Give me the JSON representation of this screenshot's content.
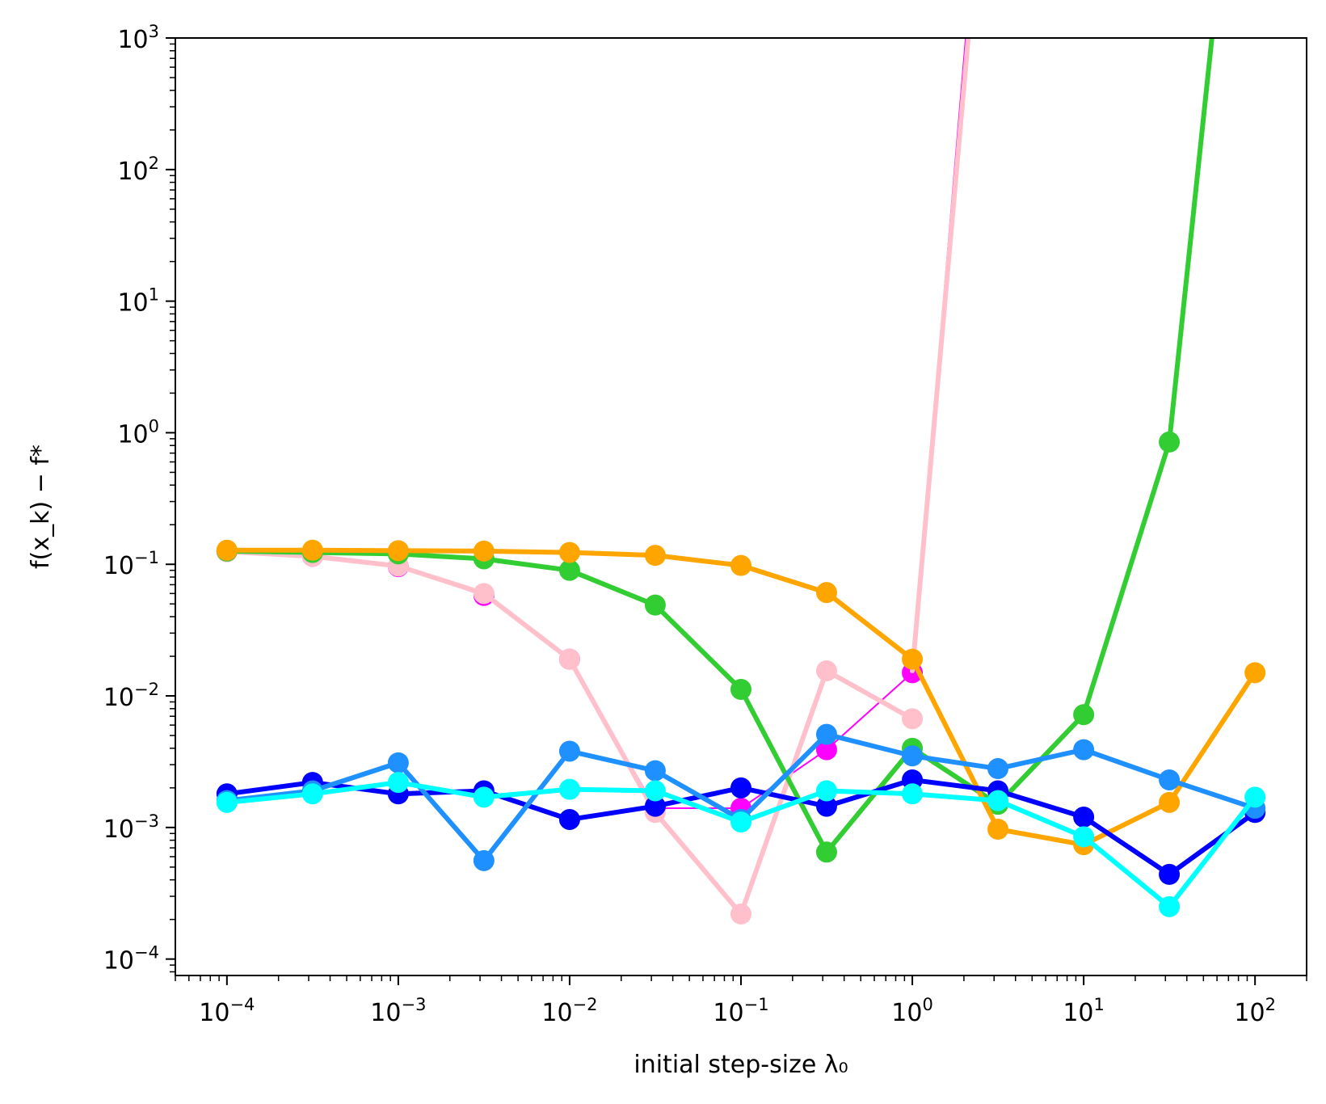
{
  "chart_data": {
    "type": "line",
    "xlabel": "initial step-size λ₀",
    "ylabel": "f(x_k) − f*",
    "xscale": "log",
    "yscale": "log",
    "xlim": [
      5e-05,
      200
    ],
    "ylim": [
      7.5e-05,
      1000
    ],
    "x_ticks": [
      {
        "value": 0.0001,
        "base": "10",
        "exp": "−4"
      },
      {
        "value": 0.001,
        "base": "10",
        "exp": "−3"
      },
      {
        "value": 0.01,
        "base": "10",
        "exp": "−2"
      },
      {
        "value": 0.1,
        "base": "10",
        "exp": "−1"
      },
      {
        "value": 1,
        "base": "10",
        "exp": "0"
      },
      {
        "value": 10,
        "base": "10",
        "exp": "1"
      },
      {
        "value": 100,
        "base": "10",
        "exp": "2"
      }
    ],
    "y_ticks": [
      {
        "value": 0.0001,
        "base": "10",
        "exp": "−4"
      },
      {
        "value": 0.001,
        "base": "10",
        "exp": "−3"
      },
      {
        "value": 0.01,
        "base": "10",
        "exp": "−2"
      },
      {
        "value": 0.1,
        "base": "10",
        "exp": "−1"
      },
      {
        "value": 1,
        "base": "10",
        "exp": "0"
      },
      {
        "value": 10,
        "base": "10",
        "exp": "1"
      },
      {
        "value": 100,
        "base": "10",
        "exp": "2"
      },
      {
        "value": 1000,
        "base": "10",
        "exp": "3"
      }
    ],
    "grid": false,
    "legend": "none",
    "series": [
      {
        "color": "#ff00ff",
        "line_width": 2,
        "markers": true,
        "x": [
          0.0001,
          0.000316,
          0.001,
          0.00316,
          0.01,
          0.0316,
          0.1,
          0.316,
          1,
          2.05
        ],
        "y": [
          0.125,
          0.115,
          0.096,
          0.058,
          0.019,
          0.0014,
          0.0014,
          0.0039,
          0.015,
          1000
        ]
      },
      {
        "color": "#ffc0cb",
        "line_width": 6,
        "markers": true,
        "x": [
          0.0001,
          0.000316,
          0.001,
          0.00316,
          0.01,
          0.0316,
          0.1,
          0.316,
          1
        ],
        "y": [
          0.125,
          0.115,
          0.097,
          0.06,
          0.019,
          0.0013,
          0.00022,
          0.0155,
          0.0067
        ]
      },
      {
        "color": "#ffc0cb",
        "line_width": 6,
        "markers": false,
        "x": [
          1,
          2.12
        ],
        "y": [
          0.0155,
          1000
        ]
      },
      {
        "color": "#32cd32",
        "line_width": 6,
        "markers": true,
        "x": [
          0.0001,
          0.000316,
          0.001,
          0.00316,
          0.01,
          0.0316,
          0.1,
          0.316,
          1,
          3.16,
          10,
          31.6,
          56
        ],
        "y": [
          0.126,
          0.123,
          0.12,
          0.11,
          0.09,
          0.049,
          0.0112,
          0.00065,
          0.004,
          0.0015,
          0.0072,
          0.85,
          1000
        ]
      },
      {
        "color": "#ffa500",
        "line_width": 6,
        "markers": true,
        "x": [
          0.0001,
          0.000316,
          0.001,
          0.00316,
          0.01,
          0.0316,
          0.1,
          0.316,
          1,
          3.16,
          10,
          31.6,
          100
        ],
        "y": [
          0.128,
          0.128,
          0.127,
          0.126,
          0.123,
          0.117,
          0.098,
          0.061,
          0.019,
          0.00097,
          0.00074,
          0.00155,
          0.015
        ]
      },
      {
        "color": "#0000ff",
        "line_width": 6,
        "markers": true,
        "x": [
          0.0001,
          0.000316,
          0.001,
          0.00316,
          0.01,
          0.0316,
          0.1,
          0.316,
          1,
          3.16,
          10,
          31.6,
          100
        ],
        "y": [
          0.0018,
          0.0022,
          0.0018,
          0.0019,
          0.00115,
          0.00145,
          0.002,
          0.00145,
          0.0023,
          0.0019,
          0.0012,
          0.00044,
          0.0013
        ]
      },
      {
        "color": "#1e90ff",
        "line_width": 6,
        "markers": true,
        "x": [
          0.0001,
          0.000316,
          0.001,
          0.00316,
          0.01,
          0.0316,
          0.1,
          0.316,
          1,
          3.16,
          10,
          31.6,
          100
        ],
        "y": [
          0.0016,
          0.0019,
          0.0031,
          0.00056,
          0.0038,
          0.0027,
          0.00115,
          0.0051,
          0.0035,
          0.0028,
          0.0039,
          0.0023,
          0.0014
        ]
      },
      {
        "color": "#00ffff",
        "line_width": 6,
        "markers": true,
        "x": [
          0.0001,
          0.000316,
          0.001,
          0.00316,
          0.01,
          0.0316,
          0.1,
          0.316,
          1,
          3.16,
          10,
          31.6,
          100
        ],
        "y": [
          0.00155,
          0.0018,
          0.0022,
          0.0017,
          0.00195,
          0.0019,
          0.0011,
          0.0019,
          0.0018,
          0.0016,
          0.00085,
          0.00025,
          0.0017
        ]
      }
    ]
  }
}
